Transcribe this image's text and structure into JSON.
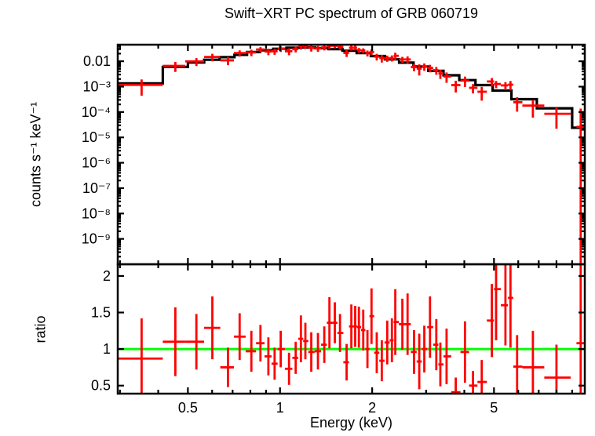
{
  "title": "Swift−XRT PC spectrum of GRB 060719",
  "chart_data": {
    "type": "scatter",
    "title": "Swift−XRT PC spectrum of GRB 060719",
    "xlabel": "Energy (keV)",
    "xscale": "log",
    "xlim": [
      0.295,
      9.9
    ],
    "x_ticks": [
      {
        "v": 0.5,
        "label": "0.5"
      },
      {
        "v": 1,
        "label": "1"
      },
      {
        "v": 2,
        "label": "2"
      },
      {
        "v": 5,
        "label": "5"
      }
    ],
    "x_minor_ticks": [
      0.3,
      0.4,
      0.6,
      0.7,
      0.8,
      0.9,
      3,
      4,
      6,
      7,
      8,
      9
    ],
    "grid": false,
    "legend": "none",
    "colors": {
      "data": "#ff0000",
      "model": "#000000",
      "reference": "#00ff00",
      "frame": "#000000",
      "background": "#ffffff"
    },
    "panels": [
      {
        "name": "spectrum",
        "ylabel": "counts s⁻¹ keV⁻¹",
        "yscale": "log",
        "ylim": [
          1e-10,
          0.045
        ],
        "y_ticks": [
          {
            "v": 0.01,
            "label": "0.01"
          },
          {
            "v": 0.001,
            "label": "10⁻³"
          },
          {
            "v": 0.0001,
            "label": "10⁻⁴"
          },
          {
            "v": 1e-05,
            "label": "10⁻⁵"
          },
          {
            "v": 1e-06,
            "label": "10⁻⁶"
          },
          {
            "v": 1e-07,
            "label": "10⁻⁷"
          },
          {
            "v": 1e-08,
            "label": "10⁻⁸"
          },
          {
            "v": 1e-09,
            "label": "10⁻⁹"
          }
        ],
        "model_steps": {
          "edges": [
            0.295,
            0.414,
            0.5,
            0.565,
            0.635,
            0.71,
            0.78,
            0.86,
            0.95,
            1.05,
            1.17,
            1.3,
            1.44,
            1.6,
            1.78,
            1.98,
            2.2,
            2.45,
            2.73,
            3.05,
            3.42,
            3.85,
            4.35,
            4.95,
            5.7,
            6.9,
            9.0,
            9.9
          ],
          "values": [
            0.00135,
            0.006,
            0.009,
            0.0115,
            0.0145,
            0.018,
            0.023,
            0.027,
            0.031,
            0.034,
            0.035,
            0.033,
            0.03,
            0.026,
            0.021,
            0.016,
            0.012,
            0.0088,
            0.0062,
            0.0042,
            0.0028,
            0.0018,
            0.00115,
            0.0007,
            0.00032,
            0.00014,
            2.4e-05
          ]
        },
        "points": {
          "columns": [
            "E_keV",
            "E_lo",
            "E_hi",
            "counts_s_keV",
            "err"
          ],
          "rows": [
            [
              0.353,
              0.295,
              0.414,
              0.00118,
              0.00074
            ],
            [
              0.455,
              0.414,
              0.49,
              0.0066,
              0.0028
            ],
            [
              0.533,
              0.49,
              0.565,
              0.0099,
              0.0034
            ],
            [
              0.601,
              0.565,
              0.638,
              0.0148,
              0.0049
            ],
            [
              0.676,
              0.638,
              0.707,
              0.0109,
              0.0039
            ],
            [
              0.738,
              0.707,
              0.772,
              0.0211,
              0.0058
            ],
            [
              0.806,
              0.772,
              0.835,
              0.0223,
              0.0064
            ],
            [
              0.863,
              0.835,
              0.89,
              0.0292,
              0.0068
            ],
            [
              0.916,
              0.89,
              0.938,
              0.0243,
              0.007
            ],
            [
              0.96,
              0.938,
              0.982,
              0.0248,
              0.0068
            ],
            [
              1.005,
              0.982,
              1.037,
              0.031,
              0.0078
            ],
            [
              1.07,
              1.037,
              1.097,
              0.0248,
              0.0075
            ],
            [
              1.125,
              1.097,
              1.147,
              0.0299,
              0.0075
            ],
            [
              1.17,
              1.147,
              1.19,
              0.0399,
              0.011
            ],
            [
              1.21,
              1.19,
              1.237,
              0.0389,
              0.0088
            ],
            [
              1.265,
              1.237,
              1.297,
              0.0336,
              0.0095
            ],
            [
              1.33,
              1.297,
              1.362,
              0.032,
              0.0083
            ],
            [
              1.395,
              1.362,
              1.422,
              0.035,
              0.0083
            ],
            [
              1.45,
              1.422,
              1.48,
              0.0408,
              0.0105
            ],
            [
              1.51,
              1.48,
              1.54,
              0.0408,
              0.0084
            ],
            [
              1.57,
              1.54,
              1.61,
              0.0366,
              0.0078
            ],
            [
              1.65,
              1.61,
              1.68,
              0.0213,
              0.0065
            ],
            [
              1.71,
              1.68,
              1.735,
              0.0341,
              0.0078
            ],
            [
              1.76,
              1.735,
              1.785,
              0.0341,
              0.0073
            ],
            [
              1.81,
              1.785,
              1.84,
              0.0273,
              0.0059
            ],
            [
              1.87,
              1.84,
              1.9,
              0.0265,
              0.0059
            ],
            [
              1.93,
              1.9,
              1.96,
              0.021,
              0.0055
            ],
            [
              1.99,
              1.96,
              2.03,
              0.0232,
              0.0061
            ],
            [
              2.07,
              2.03,
              2.11,
              0.0152,
              0.0045
            ],
            [
              2.15,
              2.11,
              2.195,
              0.0134,
              0.0045
            ],
            [
              2.24,
              2.195,
              2.28,
              0.0131,
              0.0036
            ],
            [
              2.32,
              2.28,
              2.35,
              0.0134,
              0.0036
            ],
            [
              2.38,
              2.35,
              2.445,
              0.0164,
              0.0054
            ],
            [
              2.51,
              2.445,
              2.56,
              0.0118,
              0.0031
            ],
            [
              2.61,
              2.56,
              2.675,
              0.0118,
              0.0037
            ],
            [
              2.74,
              2.675,
              2.795,
              0.00595,
              0.0019
            ],
            [
              2.85,
              2.795,
              2.905,
              0.00515,
              0.0024
            ],
            [
              2.96,
              2.905,
              3.025,
              0.0062,
              0.002
            ],
            [
              3.09,
              3.025,
              3.165,
              0.00546,
              0.0018
            ],
            [
              3.24,
              3.165,
              3.29,
              0.00445,
              0.0015
            ],
            [
              3.34,
              3.29,
              3.42,
              0.00332,
              0.0013
            ],
            [
              3.5,
              3.42,
              3.625,
              0.00252,
              0.0011
            ],
            [
              3.75,
              3.625,
              3.885,
              0.00115,
              0.00056
            ],
            [
              4.02,
              3.885,
              4.145,
              0.00173,
              0.00076
            ],
            [
              4.27,
              4.145,
              4.415,
              0.0009,
              0.00036
            ],
            [
              4.56,
              4.415,
              4.74,
              0.00063,
              0.00035
            ],
            [
              4.92,
              4.74,
              5.0,
              0.0016,
              0.00058
            ],
            [
              5.08,
              5.0,
              5.265,
              0.00127,
              0.0004
            ],
            [
              5.45,
              5.265,
              5.555,
              0.00112,
              0.00039
            ],
            [
              5.66,
              5.555,
              5.78,
              0.00119,
              0.00048
            ],
            [
              5.95,
              5.78,
              6.19,
              0.000243,
              0.00014
            ],
            [
              6.7,
              6.19,
              7.3,
              0.00018,
              0.00012
            ],
            [
              8.0,
              7.3,
              8.9,
              8.5e-05,
              6.3e-05
            ],
            [
              9.6,
              9.3,
              9.9,
              2.6e-05,
              0.00011
            ]
          ]
        }
      },
      {
        "name": "ratio",
        "ylabel": "ratio",
        "yscale": "linear",
        "ylim": [
          0.39,
          2.16
        ],
        "reference_line": 1,
        "y_ticks": [
          {
            "v": 0.5,
            "label": "0.5"
          },
          {
            "v": 1,
            "label": "1"
          },
          {
            "v": 1.5,
            "label": "1.5"
          },
          {
            "v": 2,
            "label": "2"
          }
        ],
        "y_minor_step": 0.1,
        "points": {
          "columns": [
            "E_keV",
            "E_lo",
            "E_hi",
            "ratio",
            "err"
          ],
          "rows": [
            [
              0.353,
              0.295,
              0.414,
              0.87,
              0.55
            ],
            [
              0.455,
              0.414,
              0.49,
              1.1,
              0.47
            ],
            [
              0.533,
              0.49,
              0.565,
              1.1,
              0.38
            ],
            [
              0.601,
              0.565,
              0.638,
              1.29,
              0.43
            ],
            [
              0.676,
              0.638,
              0.707,
              0.75,
              0.27
            ],
            [
              0.738,
              0.707,
              0.772,
              1.17,
              0.32
            ],
            [
              0.806,
              0.772,
              0.835,
              0.97,
              0.28
            ],
            [
              0.863,
              0.835,
              0.89,
              1.08,
              0.25
            ],
            [
              0.916,
              0.89,
              0.938,
              0.9,
              0.26
            ],
            [
              0.96,
              0.938,
              0.982,
              0.8,
              0.22
            ],
            [
              1.005,
              0.982,
              1.037,
              1.0,
              0.25
            ],
            [
              1.07,
              1.037,
              1.097,
              0.73,
              0.22
            ],
            [
              1.125,
              1.097,
              1.147,
              0.88,
              0.22
            ],
            [
              1.17,
              1.147,
              1.19,
              1.14,
              0.32
            ],
            [
              1.21,
              1.19,
              1.237,
              1.11,
              0.25
            ],
            [
              1.265,
              1.237,
              1.297,
              0.96,
              0.27
            ],
            [
              1.33,
              1.297,
              1.362,
              0.97,
              0.25
            ],
            [
              1.395,
              1.362,
              1.422,
              1.06,
              0.25
            ],
            [
              1.45,
              1.422,
              1.48,
              1.36,
              0.35
            ],
            [
              1.51,
              1.48,
              1.54,
              1.36,
              0.28
            ],
            [
              1.57,
              1.54,
              1.61,
              1.22,
              0.26
            ],
            [
              1.65,
              1.61,
              1.68,
              0.82,
              0.25
            ],
            [
              1.71,
              1.68,
              1.735,
              1.31,
              0.3
            ],
            [
              1.76,
              1.735,
              1.785,
              1.31,
              0.28
            ],
            [
              1.81,
              1.785,
              1.84,
              1.3,
              0.28
            ],
            [
              1.87,
              1.84,
              1.9,
              1.26,
              0.28
            ],
            [
              1.93,
              1.9,
              1.96,
              1.0,
              0.26
            ],
            [
              1.99,
              1.96,
              2.03,
              1.45,
              0.38
            ],
            [
              2.07,
              2.03,
              2.11,
              0.95,
              0.28
            ],
            [
              2.15,
              2.11,
              2.195,
              0.84,
              0.28
            ],
            [
              2.24,
              2.195,
              2.28,
              1.09,
              0.3
            ],
            [
              2.32,
              2.28,
              2.35,
              1.12,
              0.3
            ],
            [
              2.38,
              2.35,
              2.445,
              1.37,
              0.45
            ],
            [
              2.51,
              2.445,
              2.56,
              1.34,
              0.35
            ],
            [
              2.61,
              2.56,
              2.675,
              1.34,
              0.42
            ],
            [
              2.74,
              2.675,
              2.795,
              0.96,
              0.3
            ],
            [
              2.85,
              2.795,
              2.905,
              0.83,
              0.38
            ],
            [
              2.96,
              2.905,
              3.025,
              1.0,
              0.32
            ],
            [
              3.09,
              3.025,
              3.165,
              1.3,
              0.42
            ],
            [
              3.24,
              3.165,
              3.29,
              1.06,
              0.35
            ],
            [
              3.34,
              3.29,
              3.42,
              0.79,
              0.3
            ],
            [
              3.5,
              3.42,
              3.625,
              0.9,
              0.38
            ],
            [
              3.75,
              3.625,
              3.885,
              0.41,
              0.2
            ],
            [
              4.02,
              3.885,
              4.145,
              0.96,
              0.42
            ],
            [
              4.27,
              4.145,
              4.415,
              0.5,
              0.2
            ],
            [
              4.56,
              4.415,
              4.74,
              0.55,
              0.3
            ],
            [
              4.92,
              4.74,
              5.0,
              1.39,
              0.5
            ],
            [
              5.08,
              5.0,
              5.265,
              1.82,
              0.7
            ],
            [
              5.45,
              5.265,
              5.555,
              1.6,
              0.55
            ],
            [
              5.66,
              5.555,
              5.78,
              1.7,
              0.68
            ],
            [
              5.95,
              5.78,
              6.19,
              0.76,
              0.43
            ],
            [
              6.7,
              6.19,
              7.3,
              0.75,
              0.5
            ],
            [
              8.0,
              7.3,
              8.9,
              0.61,
              0.45
            ],
            [
              9.6,
              9.3,
              9.9,
              1.08,
              1.1
            ]
          ]
        }
      }
    ]
  }
}
